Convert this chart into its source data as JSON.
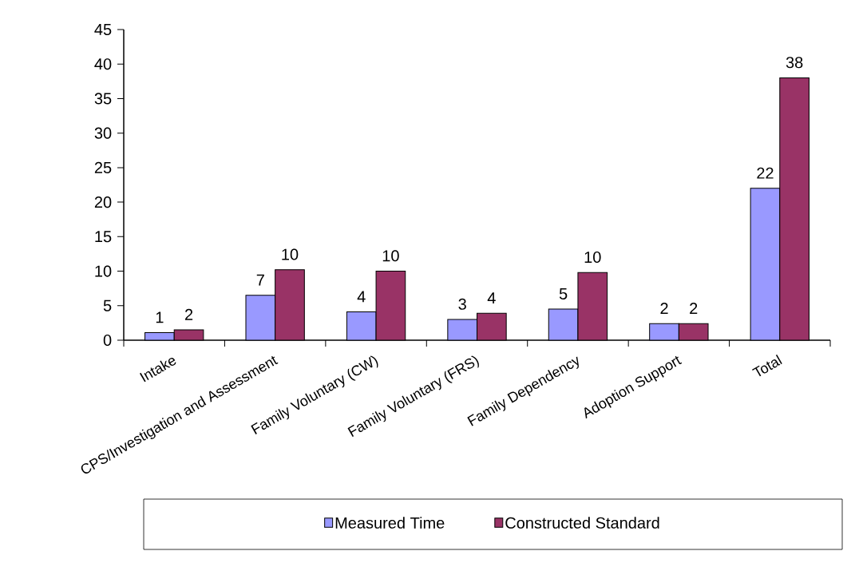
{
  "chart_data": {
    "type": "bar",
    "categories": [
      "Intake",
      "CPS/Investigation and Assessment",
      "Family Voluntary (CW)",
      "Family Voluntary (FRS)",
      "Family Dependency",
      "Adoption Support",
      "Total"
    ],
    "series": [
      {
        "name": "Measured Time",
        "color": "#9999ff",
        "values": [
          1.1,
          6.5,
          4.1,
          3.0,
          4.5,
          2.4,
          22.0
        ],
        "value_labels": [
          "1",
          "7",
          "4",
          "3",
          "5",
          "2",
          "22"
        ]
      },
      {
        "name": "Constructed Standard",
        "color": "#993366",
        "values": [
          1.5,
          10.2,
          10.0,
          3.9,
          9.8,
          2.4,
          38.0
        ],
        "value_labels": [
          "2",
          "10",
          "10",
          "4",
          "10",
          "2",
          "38"
        ]
      }
    ],
    "ylim": [
      0,
      45
    ],
    "yticks": [
      0,
      5,
      10,
      15,
      20,
      25,
      30,
      35,
      40,
      45
    ],
    "grid": false,
    "legend": "bottom"
  }
}
